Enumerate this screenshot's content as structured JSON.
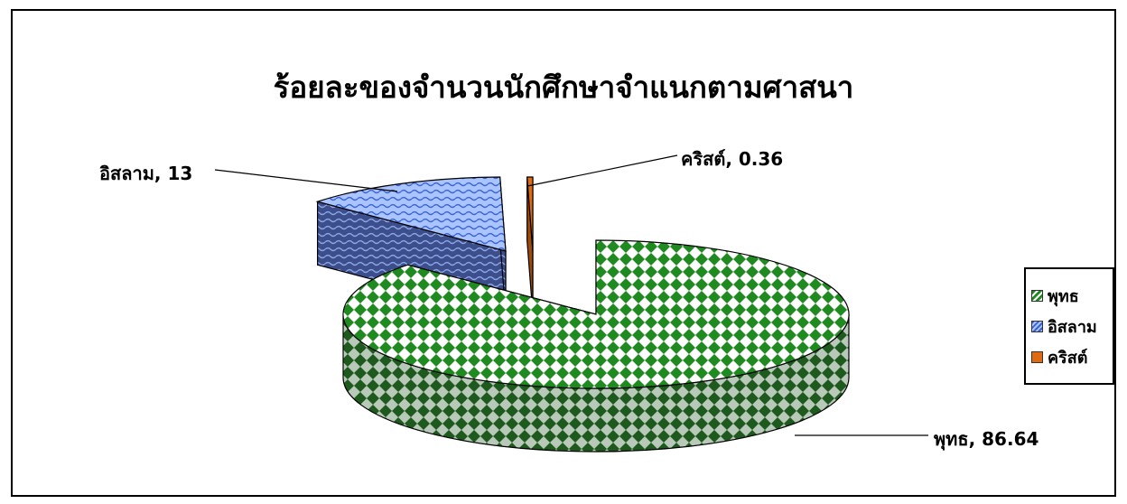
{
  "chart_data": {
    "type": "pie",
    "title": "ร้อยละของจำนวนนักศึกษาจำแนกตามศาสนา",
    "categories": [
      "พุทธ",
      "อิสลาม",
      "คริสต์"
    ],
    "values": [
      86.64,
      13,
      0.36
    ],
    "legend_position": "right",
    "colors": [
      "#2e8b2e",
      "#7fa8ff",
      "#e06a10"
    ],
    "data_labels": [
      {
        "category": "พุทธ",
        "text": "พุทธ, 86.64"
      },
      {
        "category": "อิสลาม",
        "text": "อิสลาม, 13"
      },
      {
        "category": "คริสต์",
        "text": "คริสต์, 0.36"
      }
    ]
  }
}
